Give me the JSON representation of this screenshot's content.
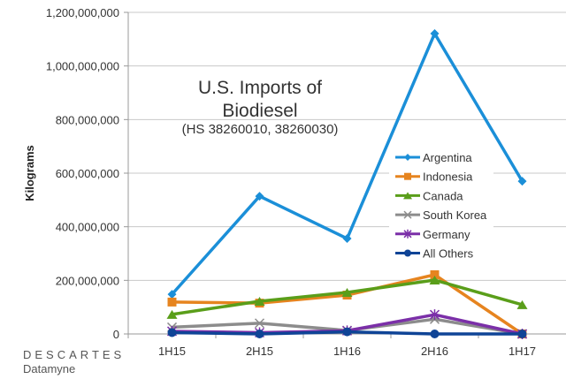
{
  "chart_data": {
    "type": "line",
    "title": "U.S. Imports of Biodiesel",
    "title_lines": [
      "U.S. Imports of",
      "Biodiesel"
    ],
    "subtitle": "(HS 38260010, 38260030)",
    "xlabel": "",
    "ylabel": "Kilograms",
    "categories": [
      "1H15",
      "2H15",
      "1H16",
      "2H16",
      "1H17"
    ],
    "ylim": [
      0,
      1200000000
    ],
    "yticks": [
      0,
      200000000,
      400000000,
      600000000,
      800000000,
      1000000000,
      1200000000
    ],
    "ytick_labels": [
      "0",
      "200,000,000",
      "400,000,000",
      "600,000,000",
      "800,000,000",
      "1,000,000,000",
      "1,200,000,000"
    ],
    "grid": "horizontal",
    "legend_position": "right",
    "series": [
      {
        "name": "Argentina",
        "color": "#1b8fd8",
        "marker": "diamond",
        "values": [
          148000000,
          514000000,
          356000000,
          1121000000,
          570000000
        ]
      },
      {
        "name": "Indonesia",
        "color": "#e6841f",
        "marker": "square",
        "values": [
          119000000,
          115000000,
          145000000,
          221000000,
          0
        ]
      },
      {
        "name": "Canada",
        "color": "#5a9e1a",
        "marker": "triangle",
        "values": [
          73000000,
          122000000,
          155000000,
          201000000,
          109000000
        ]
      },
      {
        "name": "South Korea",
        "color": "#8c8c8c",
        "marker": "x",
        "values": [
          25000000,
          40000000,
          13000000,
          55000000,
          0
        ]
      },
      {
        "name": "Germany",
        "color": "#7b2fa8",
        "marker": "star",
        "values": [
          10000000,
          5000000,
          12000000,
          72000000,
          0
        ]
      },
      {
        "name": "All Others",
        "color": "#0f4496",
        "marker": "circle",
        "values": [
          5000000,
          0,
          8000000,
          0,
          0
        ]
      }
    ]
  },
  "logo": {
    "line1": "DESCARTES",
    "line2": "Datamyne"
  }
}
